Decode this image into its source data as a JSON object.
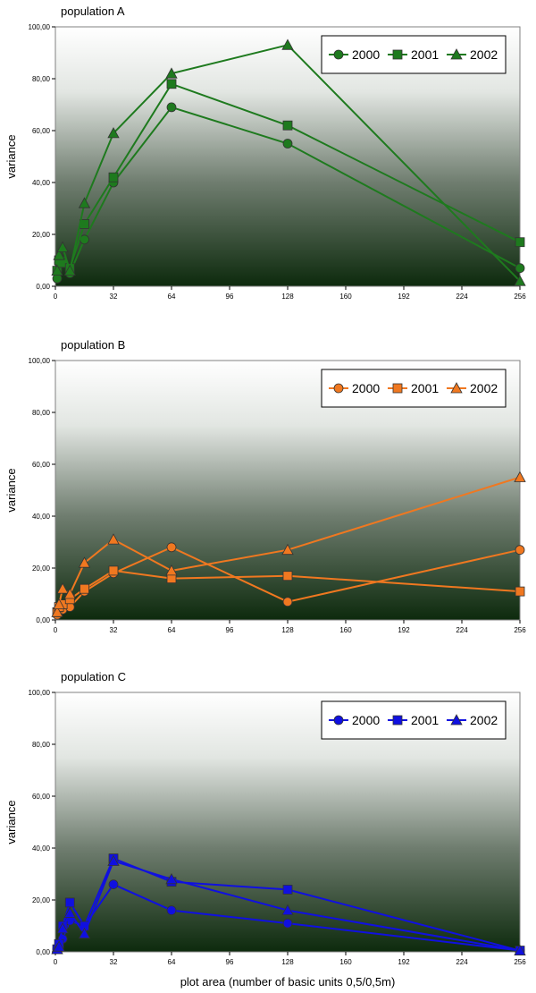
{
  "chart_data": [
    {
      "type": "line",
      "title": "population A",
      "xlabel": "",
      "ylabel": "variance",
      "xlim": [
        0,
        256
      ],
      "ylim": [
        0,
        100
      ],
      "x_ticks": [
        "0",
        "32",
        "64",
        "96",
        "128",
        "160",
        "192",
        "224",
        "256"
      ],
      "y_ticks": [
        "0,00",
        "20,00",
        "40,00",
        "60,00",
        "80,00",
        "100,00"
      ],
      "grid": false,
      "legend": "top-right",
      "color": "#1e7a1e",
      "series": [
        {
          "name": "2000",
          "marker": "circle",
          "x": [
            1,
            2,
            4,
            8,
            16,
            32,
            64,
            128,
            256
          ],
          "y": [
            3,
            9,
            10,
            5,
            18,
            40,
            69,
            55,
            7
          ]
        },
        {
          "name": "2001",
          "marker": "square",
          "x": [
            1,
            2,
            4,
            8,
            16,
            32,
            64,
            128,
            256
          ],
          "y": [
            6,
            10,
            9,
            7,
            24,
            42,
            78,
            62,
            17
          ]
        },
        {
          "name": "2002",
          "marker": "triangle",
          "x": [
            1,
            2,
            4,
            8,
            16,
            32,
            64,
            128,
            256
          ],
          "y": [
            6,
            12,
            15,
            6,
            32,
            59,
            82,
            93,
            2
          ]
        }
      ]
    },
    {
      "type": "line",
      "title": "population B",
      "xlabel": "",
      "ylabel": "variance",
      "xlim": [
        0,
        256
      ],
      "ylim": [
        0,
        100
      ],
      "x_ticks": [
        "0",
        "32",
        "64",
        "96",
        "128",
        "160",
        "192",
        "224",
        "256"
      ],
      "y_ticks": [
        "0,00",
        "20,00",
        "40,00",
        "60,00",
        "80,00",
        "100,00"
      ],
      "grid": false,
      "legend": "top-right",
      "color": "#f07820",
      "series": [
        {
          "name": "2000",
          "marker": "circle",
          "x": [
            1,
            2,
            4,
            8,
            16,
            32,
            64,
            128,
            256
          ],
          "y": [
            2,
            3,
            4,
            5,
            11,
            18,
            28,
            7,
            27
          ]
        },
        {
          "name": "2001",
          "marker": "square",
          "x": [
            1,
            2,
            4,
            8,
            16,
            32,
            64,
            128,
            256
          ],
          "y": [
            3,
            5,
            6,
            8,
            12,
            19,
            16,
            17,
            11
          ]
        },
        {
          "name": "2002",
          "marker": "triangle",
          "x": [
            1,
            2,
            4,
            8,
            16,
            32,
            64,
            128,
            256
          ],
          "y": [
            3,
            6,
            12,
            10,
            22,
            31,
            19,
            27,
            55
          ]
        }
      ]
    },
    {
      "type": "line",
      "title": "population C",
      "xlabel": "plot area (number of basic units 0,5/0,5m)",
      "ylabel": "variance",
      "xlim": [
        0,
        256
      ],
      "ylim": [
        0,
        100
      ],
      "x_ticks": [
        "0",
        "32",
        "64",
        "96",
        "128",
        "160",
        "192",
        "224",
        "256"
      ],
      "y_ticks": [
        "0,00",
        "20,00",
        "40,00",
        "60,00",
        "80,00",
        "100,00"
      ],
      "grid": false,
      "legend": "top-right",
      "color": "#1010e0",
      "series": [
        {
          "name": "2000",
          "marker": "circle",
          "x": [
            1,
            2,
            4,
            8,
            16,
            32,
            64,
            128,
            256
          ],
          "y": [
            1,
            2,
            5,
            12,
            10,
            26,
            16,
            11,
            0.5
          ]
        },
        {
          "name": "2001",
          "marker": "square",
          "x": [
            1,
            2,
            4,
            8,
            16,
            32,
            64,
            128,
            256
          ],
          "y": [
            1,
            3,
            10,
            19,
            10,
            36,
            27,
            24,
            0.5
          ]
        },
        {
          "name": "2002",
          "marker": "triangle",
          "x": [
            1,
            2,
            4,
            8,
            16,
            32,
            64,
            128,
            256
          ],
          "y": [
            1,
            2,
            9,
            15,
            7,
            35,
            28,
            16,
            0.5
          ]
        }
      ]
    }
  ]
}
